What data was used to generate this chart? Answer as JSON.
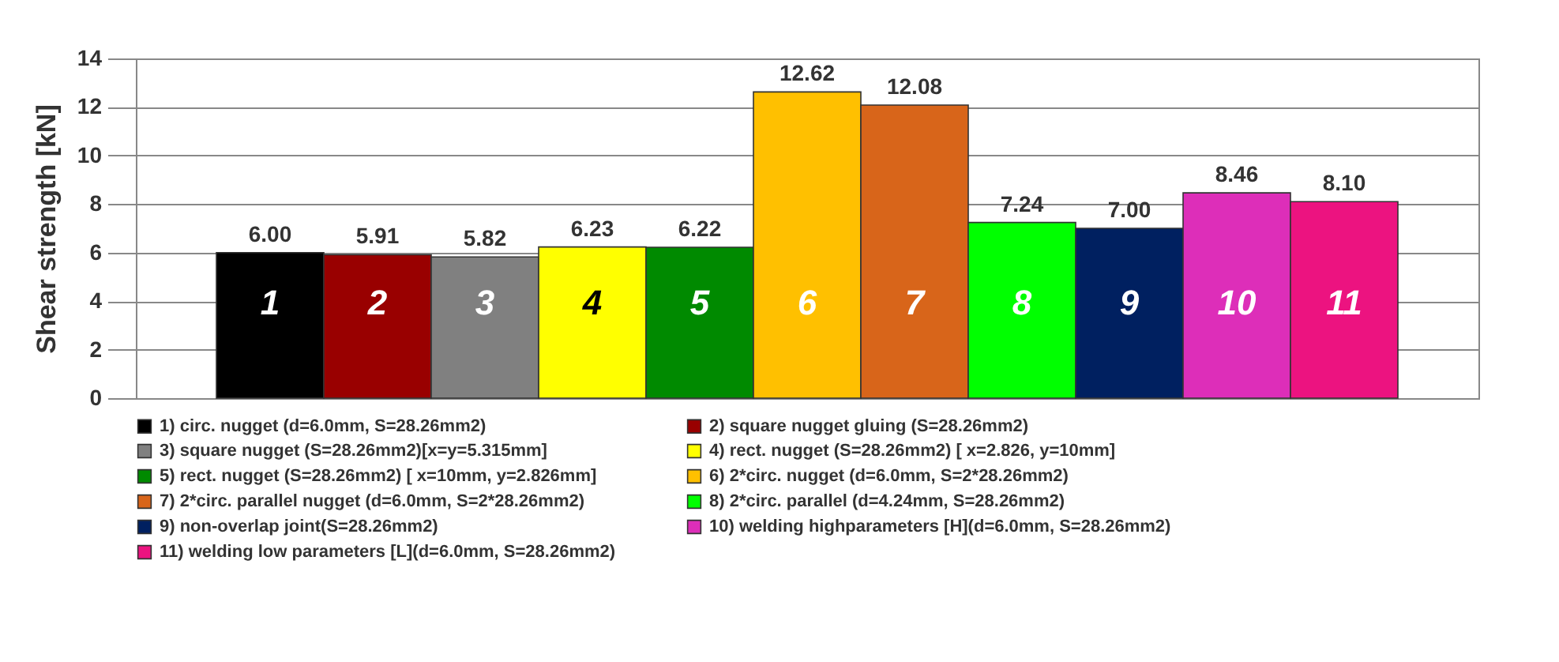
{
  "chart_data": {
    "type": "bar",
    "ylabel": "Shear strength  [kN]",
    "categories": [
      "1",
      "2",
      "3",
      "4",
      "5",
      "6",
      "7",
      "8",
      "9",
      "10",
      "11"
    ],
    "series": [
      {
        "name": "1) circ. nugget (d=6.0mm, S=28.26mm2)",
        "color": "#000000",
        "values": [
          6.0,
          null,
          null,
          null,
          null,
          null,
          null,
          null,
          null,
          null,
          null
        ],
        "value_labels": [
          "6.00",
          null,
          null,
          null,
          null,
          null,
          null,
          null,
          null,
          null,
          null
        ]
      },
      {
        "name": "2) square nugget gluing (S=28.26mm2)",
        "color": "#990000",
        "values": [
          null,
          5.91,
          null,
          null,
          null,
          null,
          null,
          null,
          null,
          null,
          null
        ]
      },
      {
        "name": "3) square nugget (S=28.26mm2)[x=y=5.315mm]",
        "color": "#808080",
        "values": [
          null,
          null,
          5.82,
          null,
          null,
          null,
          null,
          null,
          null,
          null,
          null
        ]
      },
      {
        "name": "4) rect. nugget  (S=28.26mm2) [ x=2.826, y=10mm]",
        "color": "#ffff00",
        "values": [
          null,
          null,
          null,
          6.23,
          null,
          null,
          null,
          null,
          null,
          null,
          null
        ]
      },
      {
        "name": "5) rect. nugget (S=28.26mm2) [ x=10mm, y=2.826mm]",
        "color": "#008a00",
        "values": [
          null,
          null,
          null,
          null,
          6.22,
          null,
          null,
          null,
          null,
          null,
          null
        ]
      },
      {
        "name": "6) 2*circ. nugget (d=6.0mm, S=2*28.26mm2)",
        "color": "#ffc000",
        "values": [
          null,
          null,
          null,
          null,
          null,
          12.62,
          null,
          null,
          null,
          null,
          null
        ]
      },
      {
        "name": "7) 2*circ. parallel nugget (d=6.0mm, S=2*28.26mm2)",
        "color": "#d8651a",
        "values": [
          null,
          null,
          null,
          null,
          null,
          null,
          12.08,
          null,
          null,
          null,
          null
        ]
      },
      {
        "name": "8) 2*circ. parallel  (d=4.24mm, S=28.26mm2)",
        "color": "#00ff00",
        "values": [
          null,
          null,
          null,
          null,
          null,
          null,
          null,
          7.24,
          null,
          null,
          null
        ]
      },
      {
        "name": "9) non-overlap joint(S=28.26mm2)",
        "color": "#002060",
        "values": [
          null,
          null,
          null,
          null,
          null,
          null,
          null,
          null,
          7.0,
          null,
          null
        ],
        "value_labels": [
          null,
          null,
          null,
          null,
          null,
          null,
          null,
          null,
          "7.00",
          null,
          null
        ]
      },
      {
        "name": "10) welding highparameters [H](d=6.0mm, S=28.26mm2)",
        "color": "#dd2eb9",
        "values": [
          null,
          null,
          null,
          null,
          null,
          null,
          null,
          null,
          null,
          8.46,
          null
        ]
      },
      {
        "name": "11) welding  low parameters [L](d=6.0mm, S=28.26mm2)",
        "color": "#ec1380",
        "values": [
          null,
          null,
          null,
          null,
          null,
          null,
          null,
          null,
          null,
          null,
          8.1
        ],
        "value_labels": [
          null,
          null,
          null,
          null,
          null,
          null,
          null,
          null,
          null,
          null,
          "8.10"
        ]
      }
    ],
    "ylim": [
      0,
      14
    ],
    "yticks": [
      0,
      2,
      4,
      6,
      8,
      10,
      12,
      14
    ],
    "grid": "y",
    "legend": "bottom",
    "data_labels": true
  }
}
